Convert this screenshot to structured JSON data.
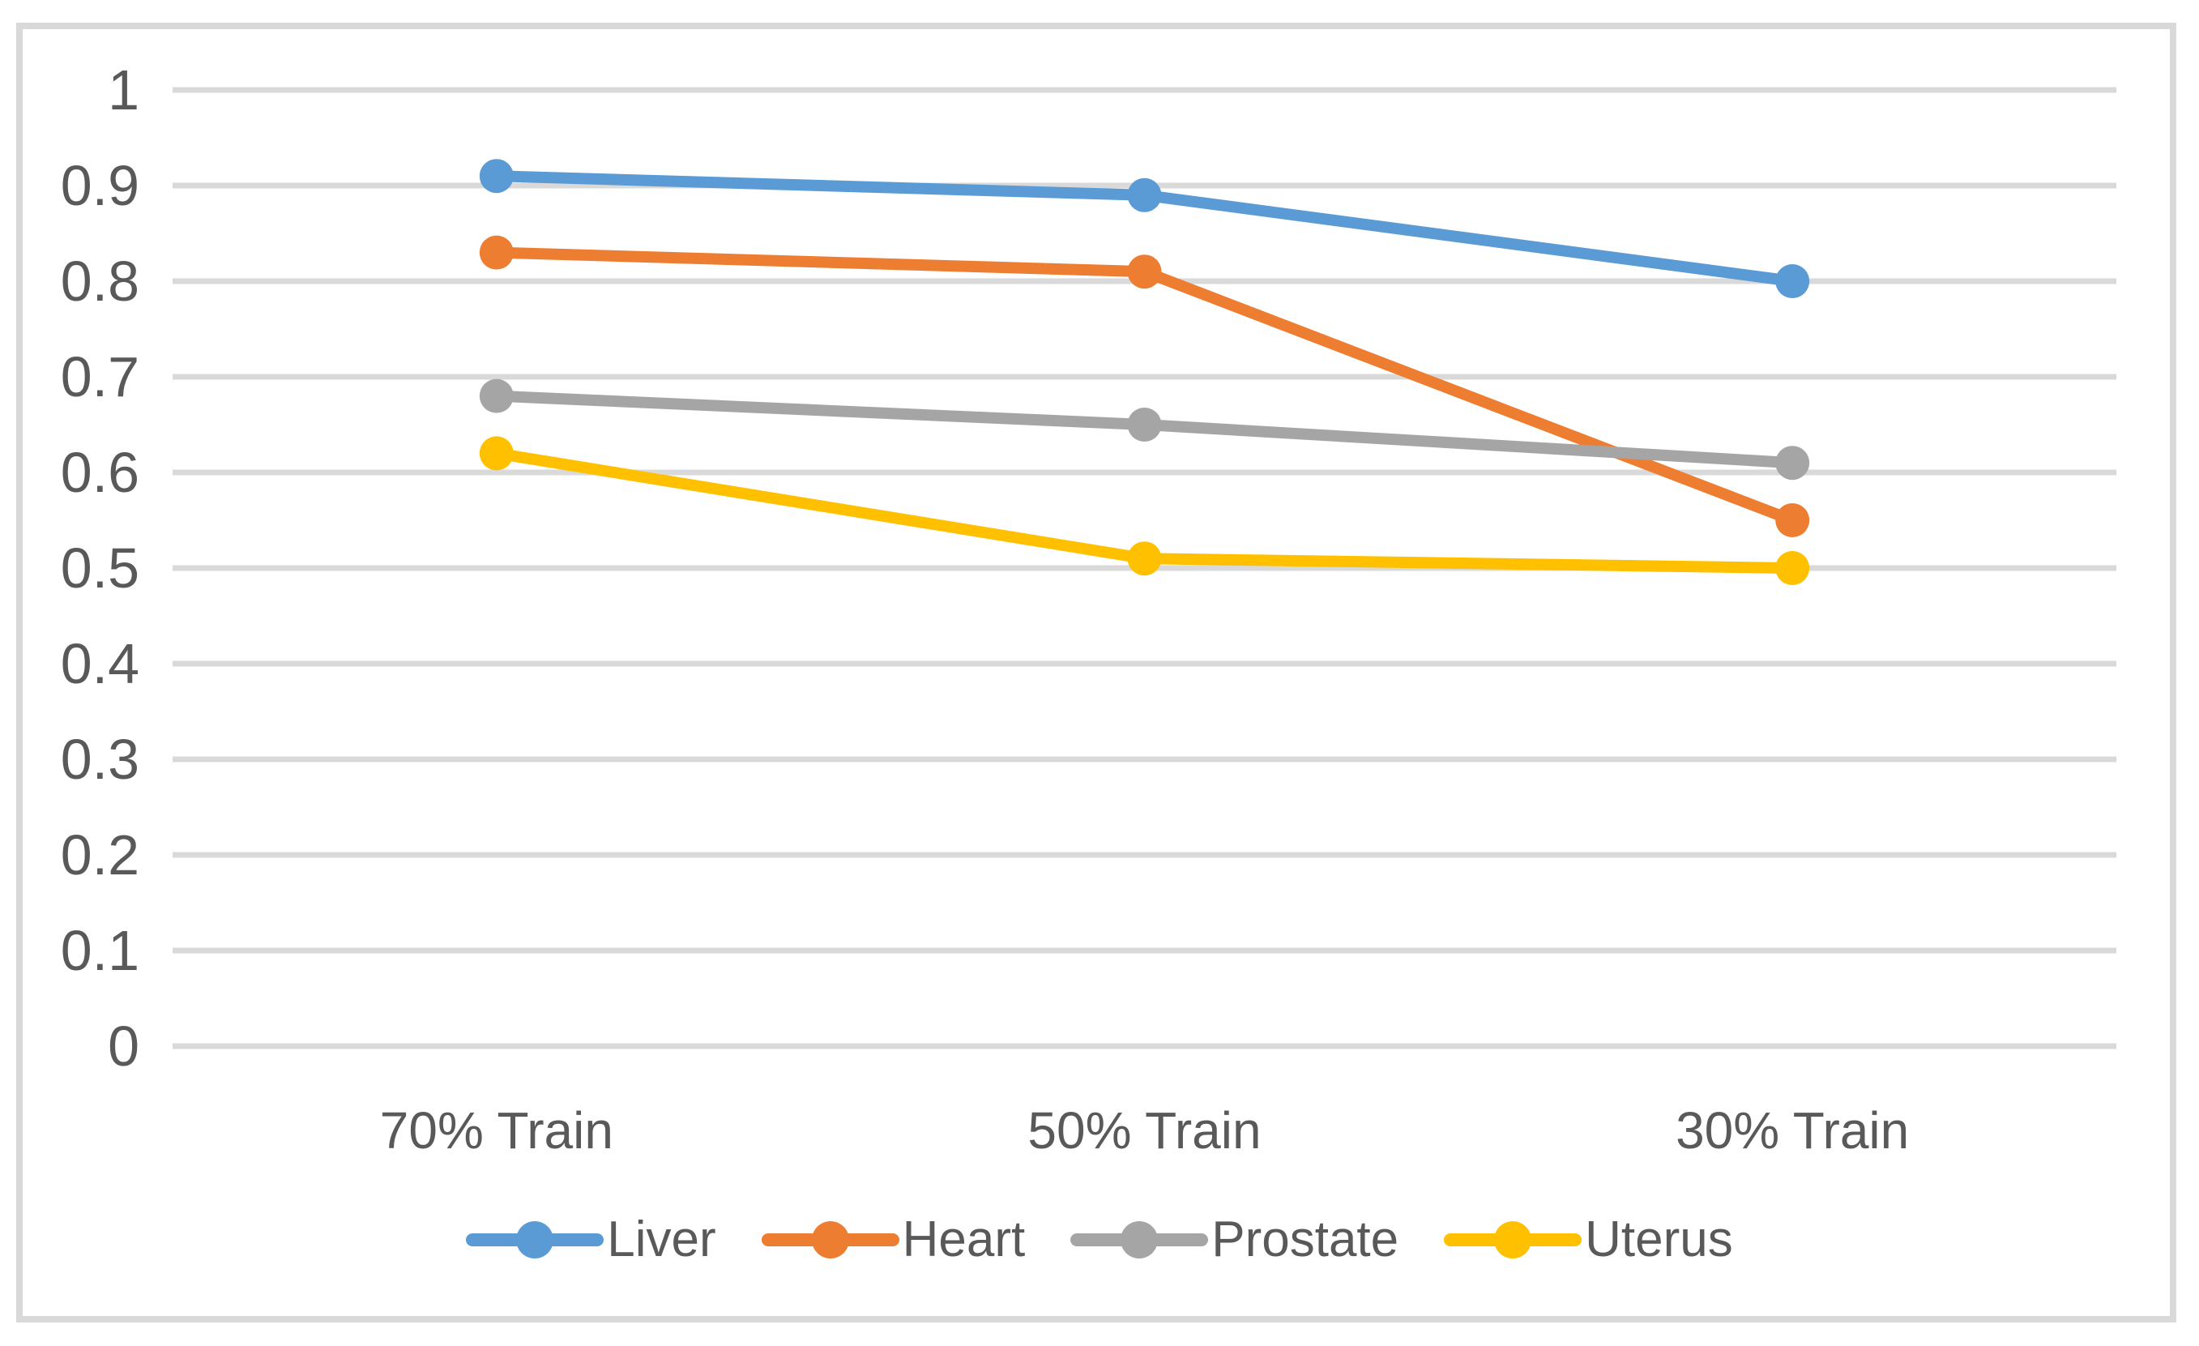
{
  "chart_data": {
    "type": "line",
    "categories": [
      "70% Train",
      "50% Train",
      "30% Train"
    ],
    "series": [
      {
        "name": "Liver",
        "color": "#5B9BD5",
        "values": [
          0.91,
          0.89,
          0.8
        ]
      },
      {
        "name": "Heart",
        "color": "#ED7D31",
        "values": [
          0.83,
          0.81,
          0.55
        ]
      },
      {
        "name": "Prostate",
        "color": "#A5A5A5",
        "values": [
          0.68,
          0.65,
          0.61
        ]
      },
      {
        "name": "Uterus",
        "color": "#FFC000",
        "values": [
          0.62,
          0.51,
          0.5
        ]
      }
    ],
    "title": "",
    "xlabel": "",
    "ylabel": "",
    "ylim": [
      0,
      1
    ],
    "ytick_labels": [
      "1",
      "0.9",
      "0.8",
      "0.7",
      "0.6",
      "0.5",
      "0.4",
      "0.3",
      "0.2",
      "0.1",
      "0"
    ],
    "grid": "horizontal-only",
    "legend_position": "bottom",
    "marker": "circle"
  },
  "colors": {
    "background": "#FFFFFF",
    "gridline": "#D9D9D9",
    "chart_border": "#D9D9D9",
    "axis_text": "#595959"
  }
}
